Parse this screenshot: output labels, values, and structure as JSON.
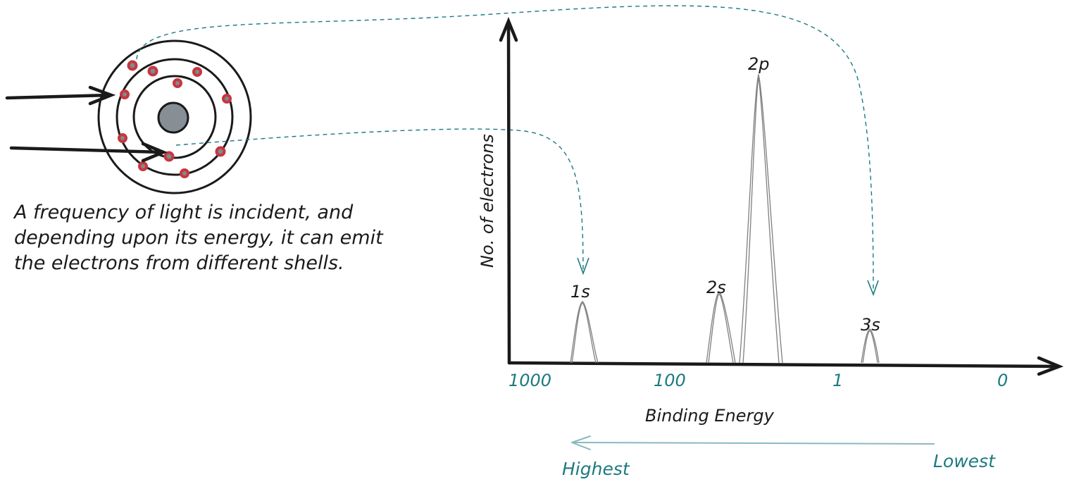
{
  "caption": {
    "lines": [
      "A frequency of light is incident, and",
      "depending upon its energy, it can emit",
      "the electrons from different shells."
    ]
  },
  "spectrum": {
    "y_axis_label": "No. of electrons",
    "x_axis_label": "Binding Energy",
    "ticks": [
      "1000",
      "100",
      "1",
      "0"
    ],
    "peaks": [
      "1s",
      "2s",
      "2p",
      "3s"
    ]
  },
  "direction": {
    "highest": "Highest",
    "lowest": "Lowest"
  },
  "colors": {
    "ink": "#1a1a1a",
    "teal": "#1c7a80",
    "electron_fill": "#c8363b",
    "electron_core": "#7d8a93",
    "nucleus": "#868e96",
    "peak_line": "#7f7f7f",
    "arrow_faint": "#8ab9c0"
  }
}
